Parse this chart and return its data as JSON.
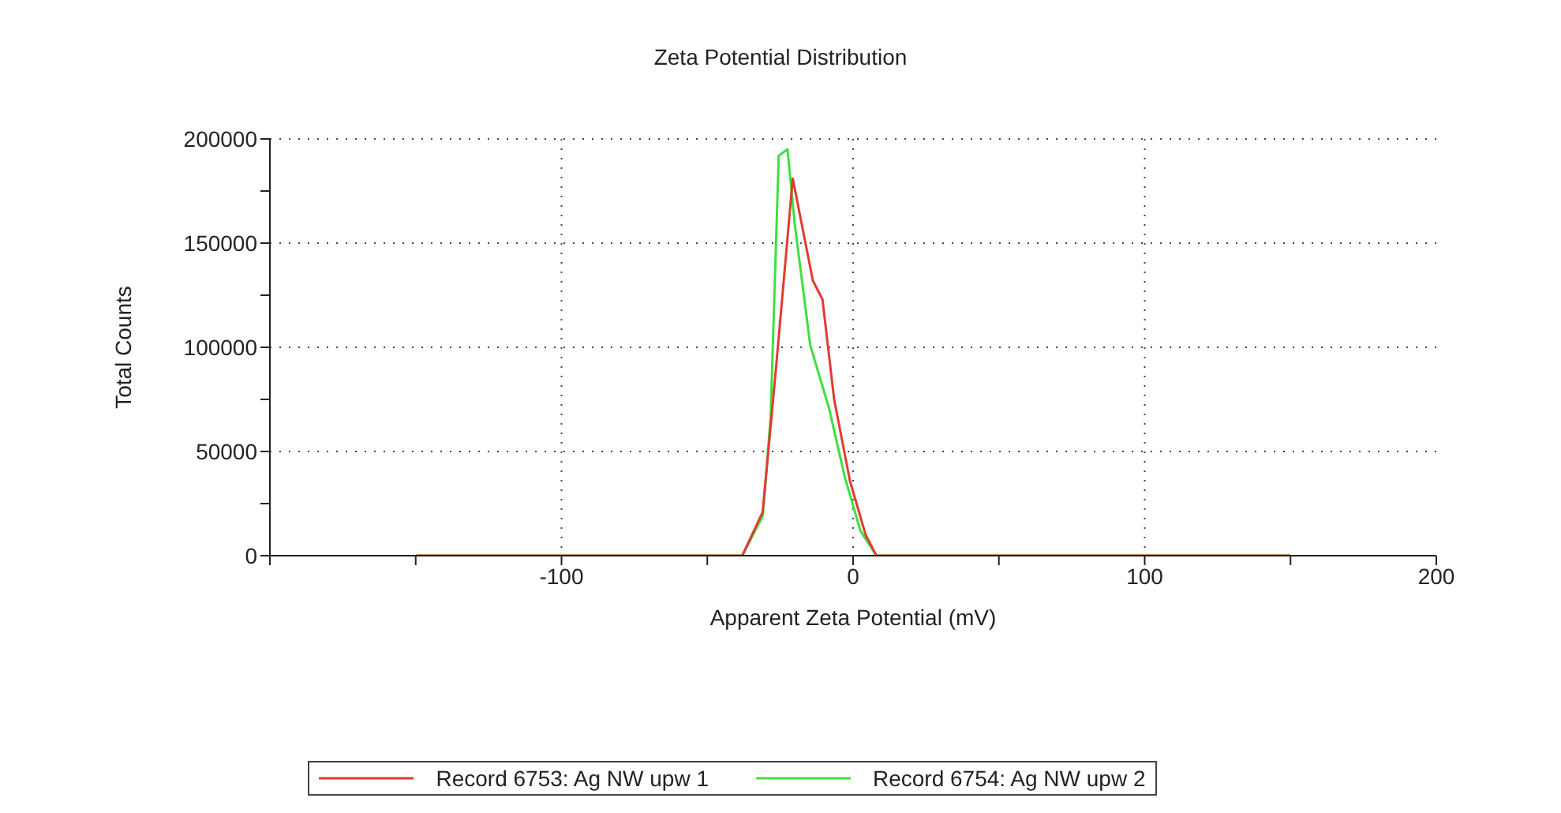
{
  "chart_data": {
    "type": "line",
    "title": "Zeta Potential Distribution",
    "xlabel": "Apparent Zeta Potential (mV)",
    "ylabel": "Total Counts",
    "xlim": [
      -200,
      200
    ],
    "xticks": [
      {
        "value": -200,
        "label": null
      },
      {
        "value": -150,
        "label": null
      },
      -100,
      {
        "value": -50,
        "label": null
      },
      0,
      {
        "value": 50,
        "label": null
      },
      100,
      {
        "value": 150,
        "label": null
      },
      200
    ],
    "ylim": [
      0,
      200000
    ],
    "yticks": [
      0,
      {
        "value": 25000,
        "label": null
      },
      50000,
      {
        "value": 75000,
        "label": null
      },
      100000,
      {
        "value": 125000,
        "label": null
      },
      150000,
      {
        "value": 175000,
        "label": null
      },
      200000
    ],
    "grid": true,
    "legend": "bottom",
    "marker": "none",
    "line_style": "solid",
    "series": [
      {
        "name": "Record 6753: Ag NW upw 1",
        "color": "#e03c31",
        "x": [
          -150,
          -38,
          -31,
          -26.5,
          -20.7,
          -13.8,
          -10.5,
          -6.5,
          -1.1,
          4.3,
          8,
          150
        ],
        "values": [
          0,
          0,
          21000,
          89000,
          181000,
          132000,
          123000,
          75000,
          36000,
          10000,
          0,
          0
        ]
      },
      {
        "name": "Record 6754: Ag NW upw 2",
        "color": "#3ee03e",
        "x": [
          -150,
          -38,
          -31,
          -28.3,
          -25.5,
          -22.5,
          -20,
          -14.7,
          -8.3,
          -2.9,
          2.5,
          8,
          150
        ],
        "values": [
          0,
          0,
          19000,
          66000,
          192000,
          195000,
          159000,
          101000,
          71000,
          38000,
          12000,
          0,
          0
        ]
      }
    ]
  }
}
